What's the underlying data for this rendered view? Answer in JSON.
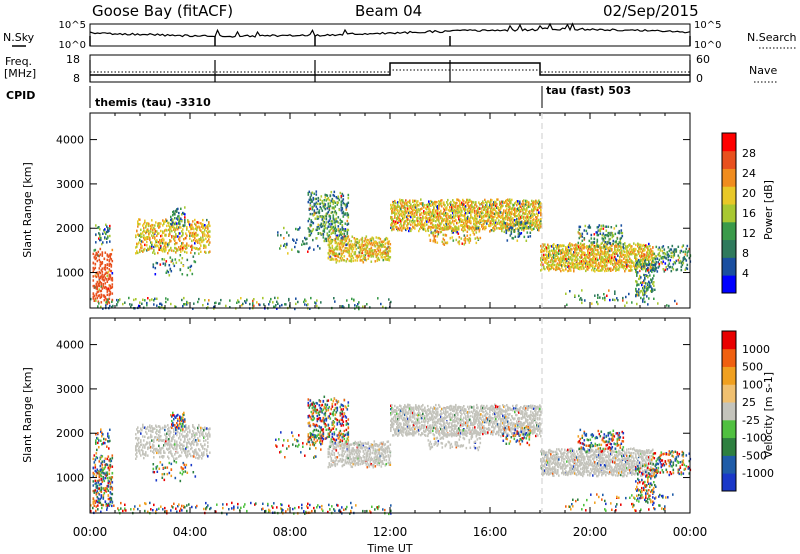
{
  "header": {
    "station": "Goose Bay (fitACF)",
    "beam": "Beam 04",
    "date": "02/Sep/2015"
  },
  "noise_panel": {
    "left_label": "N.Sky",
    "right_label": "N.Search",
    "left_ticks": [
      "10^5",
      "10^0"
    ],
    "right_ticks": [
      "10^5",
      "10^0"
    ]
  },
  "freq_panel": {
    "left_label_1": "Freq.",
    "left_label_2": "[MHz]",
    "right_label": "Nave",
    "left_ticks": [
      "18",
      "8"
    ],
    "right_ticks": [
      "60",
      "0"
    ]
  },
  "cpid_panel": {
    "label": "CPID",
    "mode_1": "themis (tau) -3310",
    "mode_2": "tau (fast) 503"
  },
  "time_axis": {
    "title": "Time UT",
    "ticks": [
      "00:00",
      "04:00",
      "08:00",
      "12:00",
      "16:00",
      "20:00",
      "00:00"
    ]
  },
  "colors": {
    "power_scale": [
      "#0000ff",
      "#1a4fa0",
      "#2f7a5c",
      "#3a9a4a",
      "#a8c832",
      "#e8c828",
      "#f08c1e",
      "#e8501e",
      "#ff0000"
    ],
    "velocity_scale": [
      "#e80000",
      "#f06010",
      "#f0a020",
      "#f0c070",
      "#c4c4bc",
      "#50c040",
      "#2e8040",
      "#1f5ca8",
      "#1a38c8"
    ],
    "ground_scatter": "#c4c4bc"
  },
  "chart_data": [
    {
      "type": "heatmap",
      "title": "",
      "xlabel": "Time UT",
      "ylabel": "Slant Range [km]",
      "x_range_hours": [
        0,
        24
      ],
      "ylim": [
        200,
        4600
      ],
      "yticks": [
        "1000",
        "2000",
        "3000",
        "4000"
      ],
      "colorbar": {
        "label": "Power [dB]",
        "ticks": [
          "4",
          "8",
          "12",
          "16",
          "20",
          "24",
          "28"
        ]
      }
    },
    {
      "type": "heatmap",
      "title": "",
      "xlabel": "Time UT",
      "ylabel": "Slant Range [km]",
      "x_range_hours": [
        0,
        24
      ],
      "ylim": [
        200,
        4600
      ],
      "yticks": [
        "1000",
        "2000",
        "3000",
        "4000"
      ],
      "colorbar": {
        "label": "Velocity [m s-1]",
        "ticks": [
          "1000",
          "500",
          "100",
          "25",
          "-25",
          "-100",
          "-500",
          "-1000"
        ]
      }
    }
  ]
}
